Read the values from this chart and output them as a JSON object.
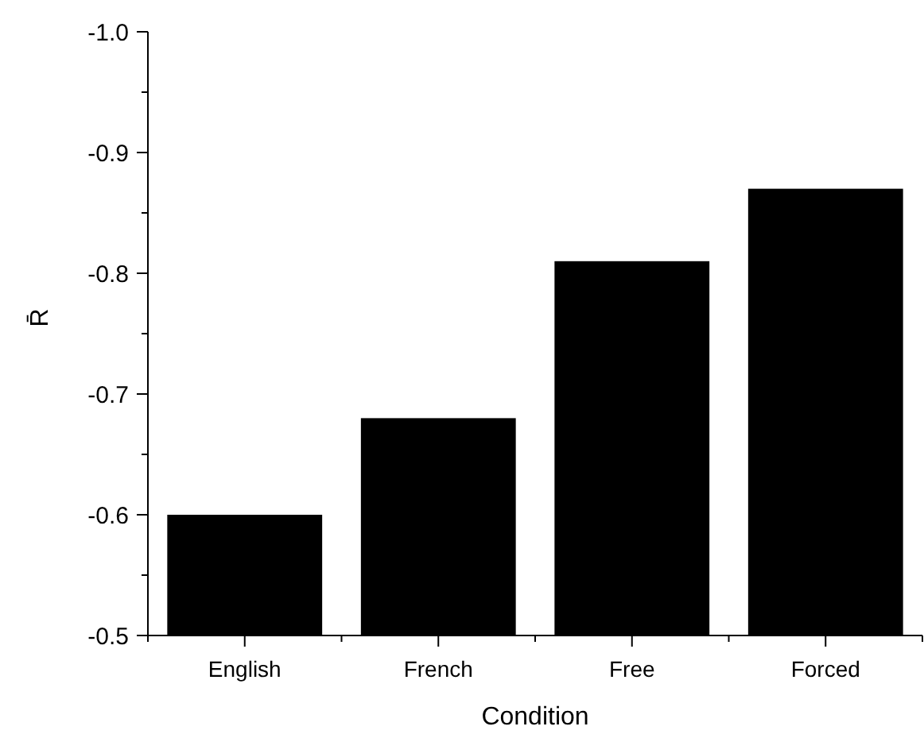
{
  "chart_data": {
    "type": "bar",
    "xlabel": "Condition",
    "ylabel": "R̄",
    "categories": [
      "English",
      "French",
      "Free",
      "Forced"
    ],
    "values": [
      -0.6,
      -0.68,
      -0.81,
      -0.87
    ],
    "color": "#000000",
    "ylim": [
      -0.5,
      -1.0
    ],
    "yticks": [
      {
        "value": -0.5,
        "label": "-0.5"
      },
      {
        "value": -0.6,
        "label": "-0.6"
      },
      {
        "value": -0.7,
        "label": "-0.7"
      },
      {
        "value": -0.8,
        "label": "-0.8"
      },
      {
        "value": -0.9,
        "label": "-0.9"
      },
      {
        "value": -1,
        "label": "-1.0"
      }
    ]
  }
}
